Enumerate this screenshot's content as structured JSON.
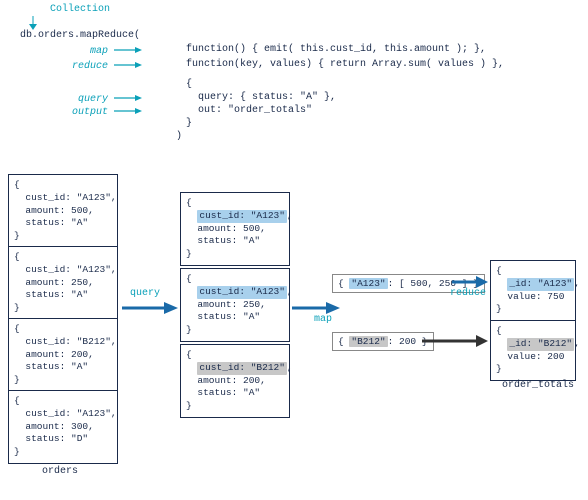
{
  "colors": {
    "text": "#1a2a4a",
    "accent": "#0aa0b8",
    "hl_blue": "#a8d0ec",
    "hl_gray": "#c7c7c7",
    "arrow_blue": "#1a6aa8",
    "arrow_dark": "#333333",
    "box_border": "#1a2a4a"
  },
  "code": {
    "collection_label": "Collection",
    "db_line": "db.orders.mapReduce(",
    "labels": {
      "map": "map",
      "reduce": "reduce",
      "query": "query",
      "output": "output"
    },
    "map_fn": "function() { emit( this.cust_id, this.amount ); },",
    "reduce_fn": "function(key, values) { return Array.sum( values ) },",
    "opts_open": "{",
    "opts_query": "  query: { status: \"A\" },",
    "opts_out": "  out: \"order_totals\"",
    "opts_close": "}",
    "close_paren": ")"
  },
  "orders_caption": "orders",
  "order_totals_caption": "order_totals",
  "orders": [
    {
      "cust_id": "\"A123\"",
      "amount": "500",
      "status": "\"A\""
    },
    {
      "cust_id": "\"A123\"",
      "amount": "250",
      "status": "\"A\""
    },
    {
      "cust_id": "\"B212\"",
      "amount": "200",
      "status": "\"A\""
    },
    {
      "cust_id": "\"A123\"",
      "amount": "300",
      "status": "\"D\""
    }
  ],
  "filtered": [
    {
      "cust_id": "\"A123\"",
      "amount": "500",
      "status": "\"A\"",
      "hl": "blue"
    },
    {
      "cust_id": "\"A123\"",
      "amount": "250",
      "status": "\"A\"",
      "hl": "blue"
    },
    {
      "cust_id": "\"B212\"",
      "amount": "200",
      "status": "\"A\"",
      "hl": "gray"
    }
  ],
  "mapped": [
    {
      "key": "\"A123\"",
      "val": "[ 500, 250 ]",
      "hl": "blue"
    },
    {
      "key": "\"B212\"",
      "val": "200",
      "hl": "gray"
    }
  ],
  "results": [
    {
      "_id": "\"A123\"",
      "value": "750",
      "hl": "blue"
    },
    {
      "_id": "\"B212\"",
      "value": "200",
      "hl": "gray"
    }
  ],
  "edge_labels": {
    "query": "query",
    "map": "map",
    "reduce": "reduce"
  }
}
